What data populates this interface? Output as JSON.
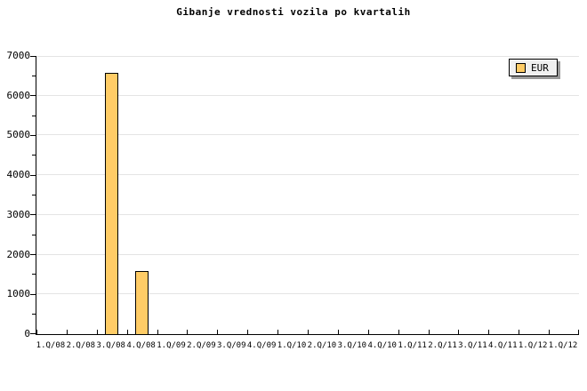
{
  "title": "Gibanje vrednosti vozila po kvartalih",
  "legend": {
    "label": "EUR"
  },
  "colors": {
    "background": "#FFFFFF",
    "text": "#000000",
    "bar_fill": "#FFCC66",
    "bar_border": "#000000",
    "axis": "#000000",
    "grid": "#E4E4E4",
    "legend_bg": "#F0F0F0",
    "legend_border": "#000000",
    "legend_shadow": "#999999"
  },
  "chart_data": {
    "type": "bar",
    "title": "Gibanje vrednosti vozila po kvartalih",
    "categories": [
      "1.Q/08",
      "2.Q/08",
      "3.Q/08",
      "4.Q/08",
      "1.Q/09",
      "2.Q/09",
      "3.Q/09",
      "4.Q/09",
      "1.Q/10",
      "2.Q/10",
      "3.Q/10",
      "4.Q/10",
      "1.Q/11",
      "2.Q/11",
      "3.Q/11",
      "4.Q/11",
      "1.Q/12",
      "1.Q/12"
    ],
    "series": [
      {
        "name": "EUR",
        "values": [
          0,
          0,
          6550,
          1570,
          0,
          0,
          0,
          0,
          0,
          0,
          0,
          0,
          0,
          0,
          0,
          0,
          0,
          0
        ]
      }
    ],
    "xlabel": "",
    "ylabel": "",
    "ylim": [
      0,
      7000
    ],
    "y_major_step": 1000,
    "y_minor_step": 500,
    "y_tick_labels": [
      "0",
      "1000",
      "2000",
      "3000",
      "4000",
      "5000",
      "6000",
      "7000"
    ],
    "grid": "horizontal-major",
    "legend_position": "top-right"
  }
}
